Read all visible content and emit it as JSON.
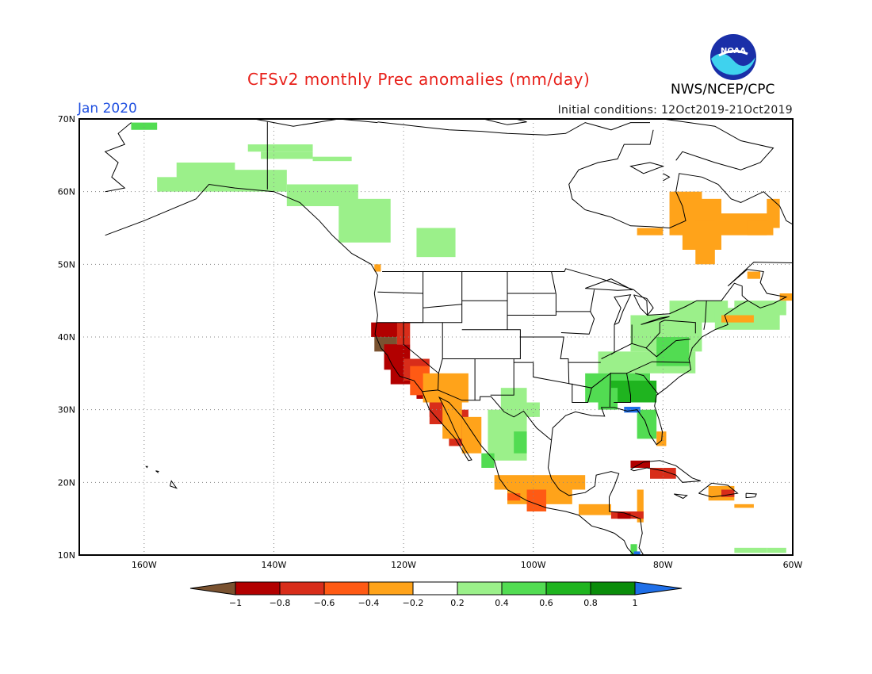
{
  "header": {
    "title": "CFSv2 monthly Prec anomalies (mm/day)",
    "agency": "NWS/NCEP/CPC",
    "month": "Jan 2020",
    "initial_conditions": "Initial conditions: 12Oct2019-21Oct2019",
    "logo_text": "NOAA"
  },
  "map": {
    "lon_range": [
      -170,
      -60
    ],
    "lat_range": [
      10,
      70
    ],
    "lat_labels": [
      "70N",
      "60N",
      "50N",
      "40N",
      "30N",
      "20N",
      "10N"
    ],
    "lon_labels": [
      "160W",
      "140W",
      "120W",
      "100W",
      "80W",
      "60W"
    ]
  },
  "colorbar": {
    "labels": [
      "-1",
      "-0.8",
      "-0.6",
      "-0.4",
      "-0.2",
      "0.2",
      "0.4",
      "0.6",
      "0.8",
      "1"
    ],
    "colors": [
      "#7a5230",
      "#b20000",
      "#d82d1a",
      "#ff5a14",
      "#ffa31a",
      "#ffffff",
      "#9bf08a",
      "#52dc52",
      "#1fb41f",
      "#0a8c0a",
      "#1f6fe8"
    ]
  }
}
